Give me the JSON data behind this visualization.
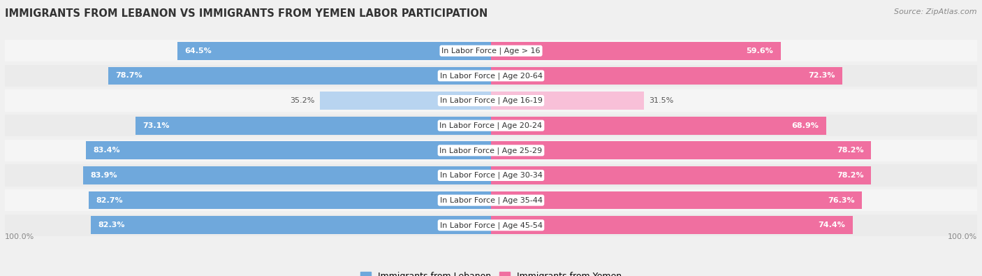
{
  "title": "IMMIGRANTS FROM LEBANON VS IMMIGRANTS FROM YEMEN LABOR PARTICIPATION",
  "source": "Source: ZipAtlas.com",
  "categories": [
    "In Labor Force | Age > 16",
    "In Labor Force | Age 20-64",
    "In Labor Force | Age 16-19",
    "In Labor Force | Age 20-24",
    "In Labor Force | Age 25-29",
    "In Labor Force | Age 30-34",
    "In Labor Force | Age 35-44",
    "In Labor Force | Age 45-54"
  ],
  "lebanon_values": [
    64.5,
    78.7,
    35.2,
    73.1,
    83.4,
    83.9,
    82.7,
    82.3
  ],
  "yemen_values": [
    59.6,
    72.3,
    31.5,
    68.9,
    78.2,
    78.2,
    76.3,
    74.4
  ],
  "lebanon_color": "#6fa8dc",
  "lebanon_color_light": "#b8d4f0",
  "yemen_color": "#f06fa0",
  "yemen_color_light": "#f8c0d8",
  "row_color_odd": "#f5f5f5",
  "row_color_even": "#ebebeb",
  "bg_color": "#f0f0f0",
  "legend_lebanon": "Immigrants from Lebanon",
  "legend_yemen": "Immigrants from Yemen",
  "bar_height": 0.72,
  "label_fontsize": 8.0,
  "value_fontsize": 8.0,
  "title_fontsize": 10.5,
  "threshold_light": 50
}
